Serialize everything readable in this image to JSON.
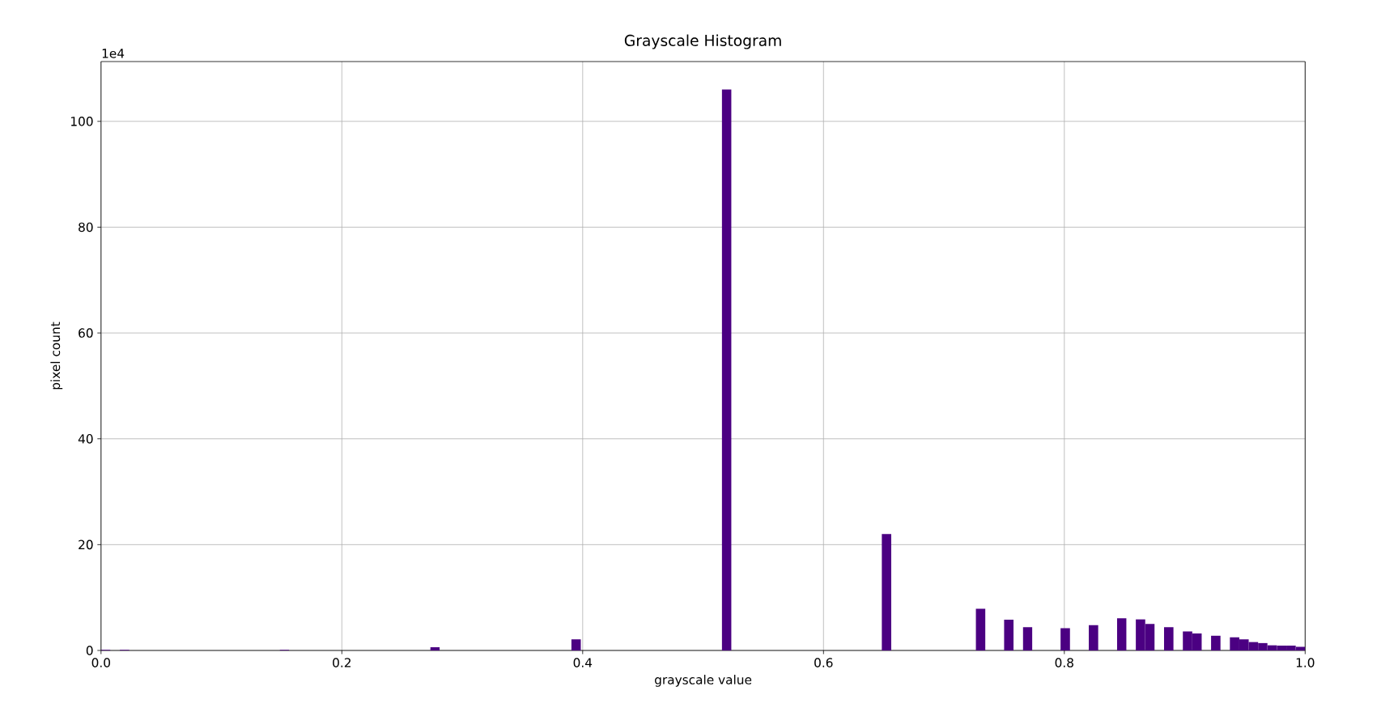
{
  "chart_data": {
    "type": "histogram",
    "title": "Grayscale Histogram",
    "xlabel": "grayscale value",
    "ylabel": "pixel count",
    "annotations": [
      "1e4"
    ],
    "bins": [
      0,
      0.0078125,
      0.015625,
      0.0234375,
      0.1484375,
      0.15625,
      0.2734375,
      0.28125,
      0.390625,
      0.3984375,
      0.515625,
      0.5234375,
      0.6484375,
      0.65625,
      0.7265625,
      0.734375,
      0.75,
      0.7578125,
      0.765625,
      0.7734375,
      0.796875,
      0.8046875,
      0.8203125,
      0.828125,
      0.84375,
      0.8515625,
      0.859375,
      0.8671875,
      0.875,
      0.8828125,
      0.890625,
      0.8984375,
      0.90625,
      0.9140625,
      0.921875,
      0.9296875,
      0.9375,
      0.9453125,
      0.953125,
      0.9609375,
      0.96875,
      0.9765625,
      0.984375,
      0.9921875,
      1.0
    ],
    "values": [
      0.1,
      0,
      0.1,
      0,
      0.1,
      0,
      0.6,
      0,
      2.1,
      0,
      106,
      0,
      22,
      0,
      7.9,
      0,
      5.8,
      0,
      4.4,
      0,
      4.2,
      0,
      4.8,
      0,
      6.1,
      0,
      5.9,
      5.0,
      0,
      4.4,
      0,
      3.6,
      3.2,
      0,
      2.8,
      0,
      2.5,
      2.1,
      1.6,
      1.4,
      1.0,
      0.9,
      0.9,
      0.7
    ],
    "color": "#4b0082",
    "xlim": [
      0,
      1
    ],
    "ylim": [
      0,
      111.3
    ],
    "xticks": [
      {
        "value": 0,
        "label": "0.0"
      },
      0.2,
      0.4,
      0.6,
      0.8,
      {
        "value": 1,
        "label": "1.0"
      }
    ],
    "yticks": [
      0,
      20,
      40,
      60,
      80,
      100
    ],
    "grid": true
  }
}
